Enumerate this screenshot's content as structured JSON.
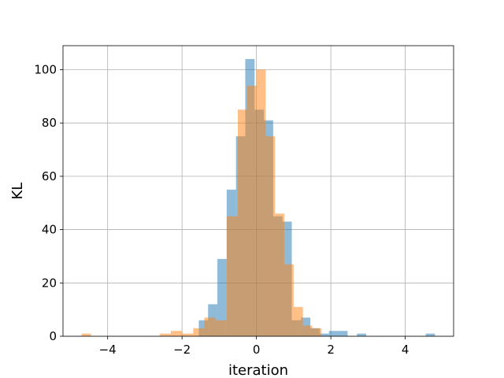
{
  "chart_data": {
    "type": "bar",
    "subtype": "overlapping-histogram",
    "xlabel": "iteration",
    "ylabel": "KL",
    "xlim": [
      -5.2,
      5.3
    ],
    "ylim": [
      0,
      109
    ],
    "xticks": [
      -4,
      -2,
      0,
      2,
      4
    ],
    "xtick_labels": [
      "−4",
      "−2",
      "0",
      "2",
      "4"
    ],
    "yticks": [
      0,
      20,
      40,
      60,
      80,
      100
    ],
    "grid": true,
    "bar_alpha": 0.5,
    "series": [
      {
        "color": "#1f77b4",
        "bins": [
          {
            "x0": -1.55,
            "x1": -1.3,
            "value": 6
          },
          {
            "x0": -1.3,
            "x1": -1.05,
            "value": 12
          },
          {
            "x0": -1.05,
            "x1": -0.8,
            "value": 29
          },
          {
            "x0": -0.8,
            "x1": -0.55,
            "value": 55
          },
          {
            "x0": -0.55,
            "x1": -0.3,
            "value": 75
          },
          {
            "x0": -0.3,
            "x1": -0.05,
            "value": 104
          },
          {
            "x0": -0.05,
            "x1": 0.2,
            "value": 85
          },
          {
            "x0": 0.2,
            "x1": 0.45,
            "value": 81
          },
          {
            "x0": 0.45,
            "x1": 0.7,
            "value": 45
          },
          {
            "x0": 0.7,
            "x1": 0.95,
            "value": 43
          },
          {
            "x0": 0.95,
            "x1": 1.2,
            "value": 6
          },
          {
            "x0": 1.2,
            "x1": 1.45,
            "value": 7
          },
          {
            "x0": 1.45,
            "x1": 1.7,
            "value": 3
          },
          {
            "x0": 1.7,
            "x1": 1.95,
            "value": 1
          },
          {
            "x0": 1.95,
            "x1": 2.2,
            "value": 2
          },
          {
            "x0": 2.2,
            "x1": 2.45,
            "value": 2
          },
          {
            "x0": 2.7,
            "x1": 2.95,
            "value": 1
          },
          {
            "x0": 4.55,
            "x1": 4.8,
            "value": 1
          }
        ]
      },
      {
        "color": "#ff7f0e",
        "bins": [
          {
            "x0": -4.7,
            "x1": -4.45,
            "value": 1
          },
          {
            "x0": -2.6,
            "x1": -2.3,
            "value": 1
          },
          {
            "x0": -2.3,
            "x1": -2.0,
            "value": 2
          },
          {
            "x0": -2.0,
            "x1": -1.7,
            "value": 1
          },
          {
            "x0": -1.7,
            "x1": -1.4,
            "value": 3
          },
          {
            "x0": -1.4,
            "x1": -1.1,
            "value": 7
          },
          {
            "x0": -1.1,
            "x1": -0.8,
            "value": 6
          },
          {
            "x0": -0.8,
            "x1": -0.5,
            "value": 45
          },
          {
            "x0": -0.5,
            "x1": -0.25,
            "value": 85
          },
          {
            "x0": -0.25,
            "x1": 0.0,
            "value": 94
          },
          {
            "x0": 0.0,
            "x1": 0.25,
            "value": 100
          },
          {
            "x0": 0.25,
            "x1": 0.5,
            "value": 75
          },
          {
            "x0": 0.5,
            "x1": 0.75,
            "value": 46
          },
          {
            "x0": 0.75,
            "x1": 1.0,
            "value": 27
          },
          {
            "x0": 1.0,
            "x1": 1.25,
            "value": 11
          },
          {
            "x0": 1.25,
            "x1": 1.5,
            "value": 4
          },
          {
            "x0": 1.5,
            "x1": 1.75,
            "value": 3
          }
        ]
      }
    ]
  }
}
